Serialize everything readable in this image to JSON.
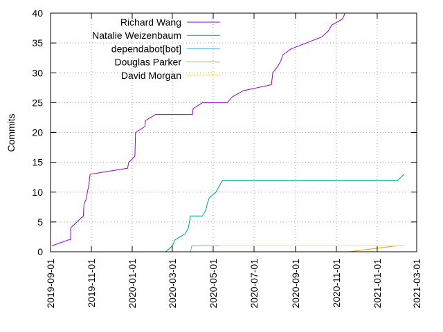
{
  "chart_data": {
    "type": "line",
    "title": "",
    "xlabel": "",
    "ylabel": "Commits",
    "x_type": "date",
    "xlim": [
      "2019-09-01",
      "2021-03-01"
    ],
    "ylim": [
      0,
      40
    ],
    "x_ticks": [
      "2019-09-01",
      "2019-11-01",
      "2020-01-01",
      "2020-03-01",
      "2020-05-01",
      "2020-07-01",
      "2020-09-01",
      "2020-11-01",
      "2021-01-01",
      "2021-03-01"
    ],
    "y_ticks": [
      0,
      5,
      10,
      15,
      20,
      25,
      30,
      35,
      40
    ],
    "grid": true,
    "legend_position": "top-left",
    "series": [
      {
        "name": "Richard Wang",
        "color": "#9400d3",
        "points": [
          [
            "2019-09-03",
            1
          ],
          [
            "2019-09-28",
            2
          ],
          [
            "2019-10-01",
            2
          ],
          [
            "2019-10-01",
            4
          ],
          [
            "2019-10-20",
            6
          ],
          [
            "2019-10-21",
            8
          ],
          [
            "2019-10-25",
            9
          ],
          [
            "2019-10-26",
            10
          ],
          [
            "2019-10-28",
            11
          ],
          [
            "2019-10-30",
            13
          ],
          [
            "2019-12-25",
            14
          ],
          [
            "2019-12-27",
            15
          ],
          [
            "2020-01-05",
            16
          ],
          [
            "2020-01-06",
            20
          ],
          [
            "2020-01-20",
            21
          ],
          [
            "2020-01-21",
            22
          ],
          [
            "2020-02-05",
            23
          ],
          [
            "2020-03-31",
            23
          ],
          [
            "2020-04-01",
            24
          ],
          [
            "2020-04-15",
            25
          ],
          [
            "2020-05-22",
            25
          ],
          [
            "2020-05-30",
            26
          ],
          [
            "2020-06-15",
            27
          ],
          [
            "2020-07-27",
            28
          ],
          [
            "2020-07-29",
            30
          ],
          [
            "2020-08-05",
            31
          ],
          [
            "2020-08-10",
            32
          ],
          [
            "2020-08-13",
            33
          ],
          [
            "2020-08-25",
            34
          ],
          [
            "2020-10-10",
            36
          ],
          [
            "2020-10-20",
            37
          ],
          [
            "2020-10-25",
            38
          ],
          [
            "2020-11-10",
            39
          ],
          [
            "2020-11-14",
            40
          ]
        ]
      },
      {
        "name": "Natalie Weizenbaum",
        "color": "#009e73",
        "points": [
          [
            "2020-02-20",
            0
          ],
          [
            "2020-03-01",
            1
          ],
          [
            "2020-03-05",
            2
          ],
          [
            "2020-03-20",
            3
          ],
          [
            "2020-03-25",
            4
          ],
          [
            "2020-03-28",
            6
          ],
          [
            "2020-04-15",
            6
          ],
          [
            "2020-04-20",
            7
          ],
          [
            "2020-04-22",
            8
          ],
          [
            "2020-04-25",
            9
          ],
          [
            "2020-05-05",
            10
          ],
          [
            "2020-05-10",
            11
          ],
          [
            "2020-05-15",
            12
          ],
          [
            "2021-02-01",
            12
          ],
          [
            "2021-02-10",
            13
          ]
        ]
      },
      {
        "name": "dependabot[bot]",
        "color": "#56b4e9",
        "points": [
          [
            "2020-03-28",
            0
          ],
          [
            "2020-03-30",
            1
          ],
          [
            "2020-05-10",
            1
          ]
        ]
      },
      {
        "name": "Douglas Parker",
        "color": "#e69f00",
        "points": [
          [
            "2020-11-20",
            0
          ],
          [
            "2021-01-30",
            1
          ],
          [
            "2021-02-10",
            1
          ]
        ]
      },
      {
        "name": "David Morgan",
        "color": "#f0e442",
        "points": [
          [
            "2020-05-10",
            1
          ],
          [
            "2021-02-10",
            1
          ]
        ]
      }
    ]
  }
}
